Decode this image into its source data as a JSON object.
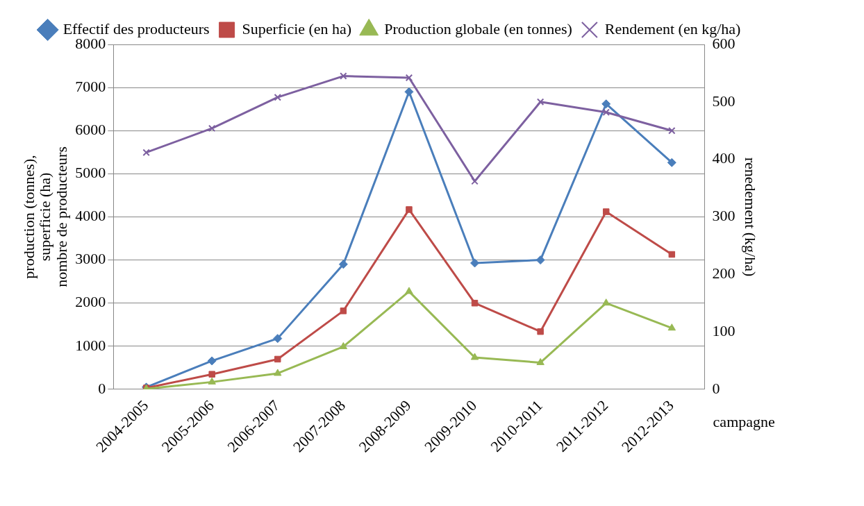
{
  "chart_data": {
    "type": "line",
    "xlabel": "campagne",
    "ylabel": "production (tonnes),\nsuperficie (ha)\nnombre de producteurs",
    "y2label": "renedement (kg/ha)",
    "categories": [
      "2004-2005",
      "2005-2006",
      "2006-2007",
      "2007-2008",
      "2008-2009",
      "2009-2010",
      "2010-2011",
      "2011-2012",
      "2012-2013"
    ],
    "series": [
      {
        "name": "Effectif des producteurs",
        "color": "#4a7ebb",
        "marker": "diamond",
        "values": [
          50,
          660,
          1180,
          2900,
          6900,
          2930,
          3000,
          6620,
          5260
        ]
      },
      {
        "name": "Superficie (en ha)",
        "color": "#be4b48",
        "marker": "square",
        "values": [
          30,
          350,
          700,
          1820,
          4170,
          2000,
          1340,
          4120,
          3130
        ]
      },
      {
        "name": "Production globale (en tonnes)",
        "color": "#98b954",
        "marker": "triangle",
        "values": [
          10,
          170,
          370,
          990,
          2270,
          740,
          620,
          2000,
          1420
        ]
      },
      {
        "name": "Rendement (en kg/ha)",
        "color": "#7d60a0",
        "marker": "cross",
        "axis": "y2",
        "values": [
          412,
          454,
          508,
          545,
          542,
          362,
          500,
          482,
          450
        ]
      }
    ],
    "ylim": [
      0,
      8000
    ],
    "yticks": [
      0,
      1000,
      2000,
      3000,
      4000,
      5000,
      6000,
      7000,
      8000
    ],
    "y2lim": [
      0,
      600
    ],
    "y2ticks": [
      0,
      100,
      200,
      300,
      400,
      500,
      600
    ],
    "grid": "y",
    "legend": "top"
  }
}
